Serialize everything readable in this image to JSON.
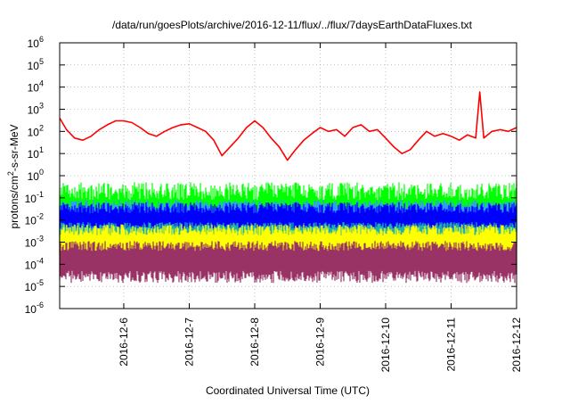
{
  "chart_data": {
    "type": "line",
    "title": "/data/run/goesPlots/archive/2016-12-11/flux/../flux/7daysEarthDataFluxes.txt",
    "xlabel": "Coordinated Universal Time (UTC)",
    "ylabel": {
      "base": "protons/cm",
      "sup": "2",
      "rest": "-s-sr-MeV"
    },
    "y_scale": "log",
    "ylim_exponents": [
      -6,
      6
    ],
    "y_ticks": [
      {
        "base": "10",
        "exp": "-6"
      },
      {
        "base": "10",
        "exp": "-5"
      },
      {
        "base": "10",
        "exp": "-4"
      },
      {
        "base": "10",
        "exp": "-3"
      },
      {
        "base": "10",
        "exp": "-2"
      },
      {
        "base": "10",
        "exp": "-1"
      },
      {
        "base": "10",
        "exp": "0"
      },
      {
        "base": "10",
        "exp": "1"
      },
      {
        "base": "10",
        "exp": "2"
      },
      {
        "base": "10",
        "exp": "3"
      },
      {
        "base": "10",
        "exp": "4"
      },
      {
        "base": "10",
        "exp": "5"
      },
      {
        "base": "10",
        "exp": "6"
      }
    ],
    "xlim": [
      "2016-12-05 00:30",
      "2016-12-12 00:00"
    ],
    "x_ticks": [
      "2016-12-6",
      "2016-12-7",
      "2016-12-8",
      "2016-12-9",
      "2016-12-10",
      "2016-12-11",
      "2016-12-12"
    ],
    "grid": true,
    "series": [
      {
        "color": "#ff0000",
        "x": [
          "2016-12-05 00:30",
          "2016-12-05 03:00",
          "2016-12-05 06:00",
          "2016-12-05 09:00",
          "2016-12-05 12:00",
          "2016-12-05 15:00",
          "2016-12-05 18:00",
          "2016-12-05 21:00",
          "2016-12-06 00:00",
          "2016-12-06 03:00",
          "2016-12-06 06:00",
          "2016-12-06 09:00",
          "2016-12-06 12:00",
          "2016-12-06 15:00",
          "2016-12-06 18:00",
          "2016-12-06 21:00",
          "2016-12-07 00:00",
          "2016-12-07 03:00",
          "2016-12-07 06:00",
          "2016-12-07 09:00",
          "2016-12-07 12:00",
          "2016-12-07 15:00",
          "2016-12-07 18:00",
          "2016-12-07 21:00",
          "2016-12-08 00:00",
          "2016-12-08 03:00",
          "2016-12-08 06:00",
          "2016-12-08 09:00",
          "2016-12-08 12:00",
          "2016-12-08 15:00",
          "2016-12-08 18:00",
          "2016-12-08 21:00",
          "2016-12-09 00:00",
          "2016-12-09 03:00",
          "2016-12-09 06:00",
          "2016-12-09 09:00",
          "2016-12-09 12:00",
          "2016-12-09 15:00",
          "2016-12-09 18:00",
          "2016-12-09 21:00",
          "2016-12-10 00:00",
          "2016-12-10 03:00",
          "2016-12-10 06:00",
          "2016-12-10 09:00",
          "2016-12-10 12:00",
          "2016-12-10 15:00",
          "2016-12-10 18:00",
          "2016-12-10 21:00",
          "2016-12-11 00:00",
          "2016-12-11 03:00",
          "2016-12-11 06:00",
          "2016-12-11 09:00",
          "2016-12-11 10:30",
          "2016-12-11 12:00",
          "2016-12-11 15:00",
          "2016-12-11 18:00",
          "2016-12-11 21:00",
          "2016-12-12 00:00"
        ],
        "y": [
          400,
          120,
          50,
          40,
          60,
          120,
          200,
          300,
          300,
          250,
          150,
          80,
          60,
          100,
          150,
          200,
          220,
          150,
          100,
          40,
          8,
          20,
          50,
          150,
          300,
          150,
          50,
          20,
          5,
          15,
          40,
          80,
          150,
          100,
          120,
          60,
          150,
          200,
          100,
          120,
          50,
          20,
          10,
          15,
          40,
          100,
          60,
          80,
          60,
          40,
          70,
          50,
          6000,
          50,
          100,
          120,
          100,
          150
        ]
      }
    ],
    "bands": [
      {
        "color": "#00ff00",
        "low": 0.002,
        "high": 0.08
      },
      {
        "color": "#3399ff",
        "low": 0.004,
        "high": 0.03
      },
      {
        "color": "#0000ff",
        "low": 0.002,
        "high": 0.02
      },
      {
        "color": "#20b2aa",
        "low": 0.001,
        "high": 0.004
      },
      {
        "color": "#ffff00",
        "low": 0.0002,
        "high": 0.002
      },
      {
        "color": "#993366",
        "low": 5e-05,
        "high": 0.0004
      }
    ]
  }
}
